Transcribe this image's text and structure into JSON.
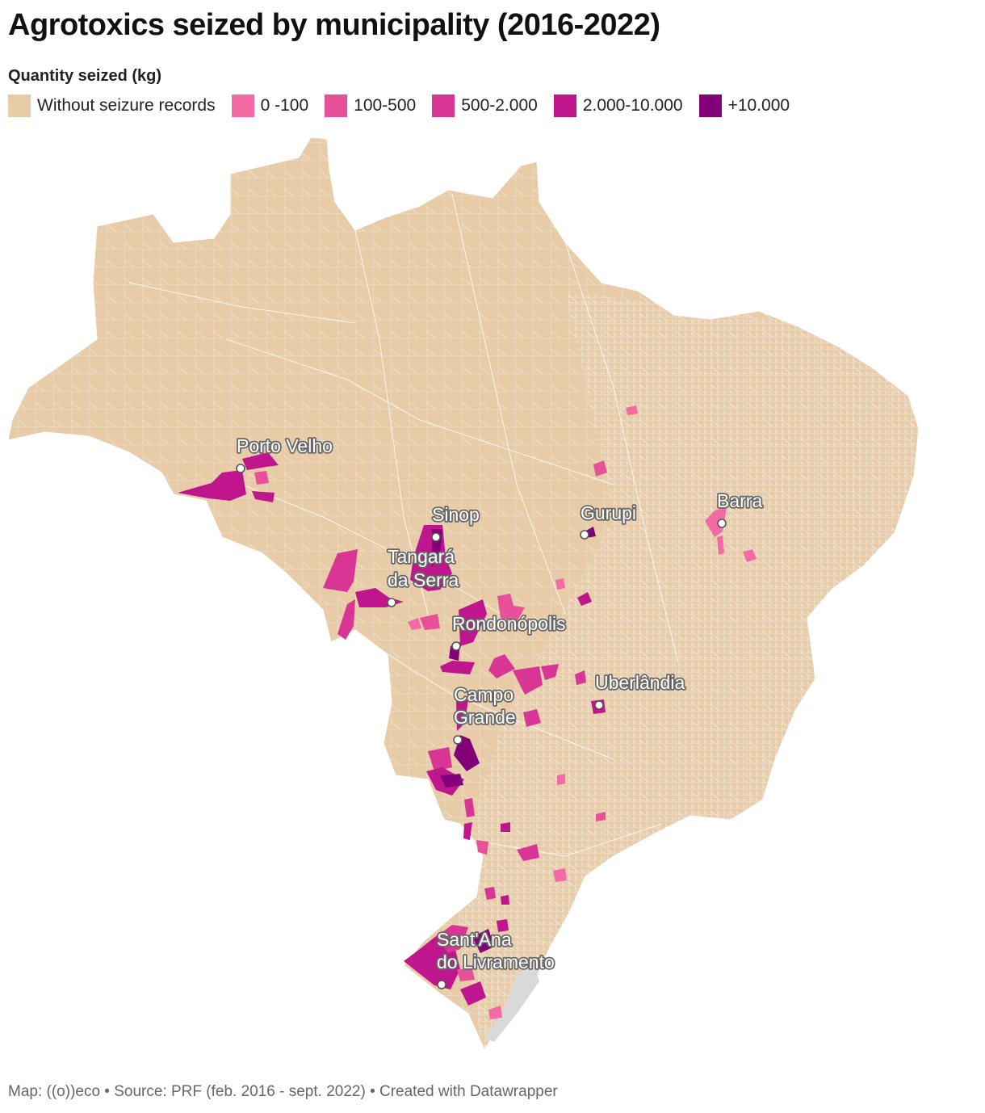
{
  "title": "Agrotoxics seized by municipality (2016-2022)",
  "legend": {
    "title": "Quantity seized (kg)",
    "items": [
      {
        "label": "Without seizure records",
        "color": "#e8cca8"
      },
      {
        "label": "0 -100",
        "color": "#f46aa5"
      },
      {
        "label": "100-500",
        "color": "#e8509a"
      },
      {
        "label": "500-2.000",
        "color": "#d93595"
      },
      {
        "label": "2.000-10.000",
        "color": "#bf168d"
      },
      {
        "label": "+10.000",
        "color": "#820078"
      }
    ]
  },
  "cities": [
    {
      "name_lines": [
        "Porto Velho"
      ]
    },
    {
      "name_lines": [
        "Sinop"
      ]
    },
    {
      "name_lines": [
        "Gurupi"
      ]
    },
    {
      "name_lines": [
        "Barra"
      ]
    },
    {
      "name_lines": [
        "Tangará",
        "da Serra"
      ]
    },
    {
      "name_lines": [
        "Rondonópolis"
      ]
    },
    {
      "name_lines": [
        "Uberlândia"
      ]
    },
    {
      "name_lines": [
        "Campo",
        "Grande"
      ]
    },
    {
      "name_lines": [
        "Sant'Ana",
        "do Livramento"
      ]
    }
  ],
  "footer": "Map: ((o))eco • Source: PRF (feb. 2016 - sept. 2022) • Created with Datawrapper"
}
